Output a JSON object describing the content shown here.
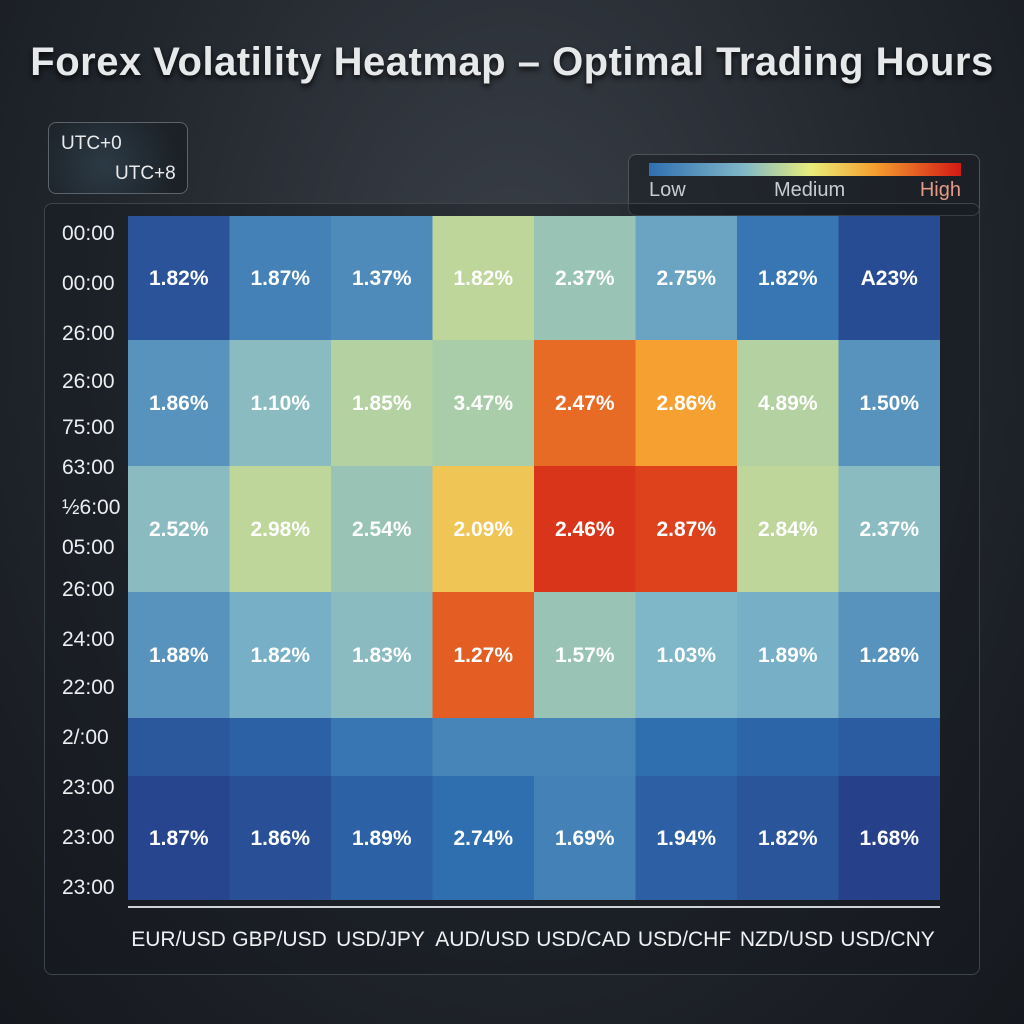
{
  "title": "Forex Volatility Heatmap – Optimal Trading Hours",
  "timezones": [
    "UTC+0",
    "UTC+8"
  ],
  "legend": {
    "low": "Low",
    "medium": "Medium",
    "high": "High"
  },
  "chart_data": {
    "type": "heatmap",
    "title": "Forex Volatility Heatmap – Optimal Trading Hours",
    "x_categories": [
      "EUR/USD",
      "GBP/USD",
      "USD/JPY",
      "AUD/USD",
      "USD/CAD",
      "USD/CHF",
      "NZD/USD",
      "USD/CNY"
    ],
    "y_tick_labels": [
      "00:00",
      "00:00",
      "26:00",
      "26:00",
      "75:00",
      "63:00",
      "½6:00",
      "05:00",
      "26:00",
      "24:00",
      "22:00",
      "2/:00",
      "23:00",
      "23:00",
      "23:00"
    ],
    "rows": [
      {
        "cells": [
          {
            "label": "1.82%",
            "level": 0.08
          },
          {
            "label": "1.87%",
            "level": 0.25
          },
          {
            "label": "1.37%",
            "level": 0.28
          },
          {
            "label": "1.82%",
            "level": 0.52
          },
          {
            "label": "2.37%",
            "level": 0.45
          },
          {
            "label": "2.75%",
            "level": 0.35
          },
          {
            "label": "1.82%",
            "level": 0.22
          },
          {
            "label": "A23%",
            "level": 0.05
          }
        ]
      },
      {
        "cells": [
          {
            "label": "1.86%",
            "level": 0.3
          },
          {
            "label": "1.10%",
            "level": 0.42
          },
          {
            "label": "1.85%",
            "level": 0.5
          },
          {
            "label": "3.47%",
            "level": 0.48
          },
          {
            "label": "2.47%",
            "level": 0.88
          },
          {
            "label": "2.86%",
            "level": 0.8
          },
          {
            "label": "4.89%",
            "level": 0.5
          },
          {
            "label": "1.50%",
            "level": 0.3
          }
        ]
      },
      {
        "cells": [
          {
            "label": "2.52%",
            "level": 0.42
          },
          {
            "label": "2.98%",
            "level": 0.52
          },
          {
            "label": "2.54%",
            "level": 0.45
          },
          {
            "label": "2.09%",
            "level": 0.7
          },
          {
            "label": "2.46%",
            "level": 0.96
          },
          {
            "label": "2.87%",
            "level": 0.94
          },
          {
            "label": "2.84%",
            "level": 0.52
          },
          {
            "label": "2.37%",
            "level": 0.42
          }
        ]
      },
      {
        "cells": [
          {
            "label": "1.88%",
            "level": 0.3
          },
          {
            "label": "1.82%",
            "level": 0.38
          },
          {
            "label": "1.83%",
            "level": 0.42
          },
          {
            "label": "1.27%",
            "level": 0.9
          },
          {
            "label": "1.57%",
            "level": 0.45
          },
          {
            "label": "1.03%",
            "level": 0.4
          },
          {
            "label": "1.89%",
            "level": 0.38
          },
          {
            "label": "1.28%",
            "level": 0.3
          }
        ]
      },
      {
        "cells": [
          {
            "label": "",
            "level": 0.1
          },
          {
            "label": "",
            "level": 0.14
          },
          {
            "label": "",
            "level": 0.22
          },
          {
            "label": "",
            "level": 0.26
          },
          {
            "label": "",
            "level": 0.26
          },
          {
            "label": "",
            "level": 0.2
          },
          {
            "label": "",
            "level": 0.16
          },
          {
            "label": "",
            "level": 0.12
          }
        ]
      },
      {
        "cells": [
          {
            "label": "1.87%",
            "level": 0.02
          },
          {
            "label": "1.86%",
            "level": 0.07
          },
          {
            "label": "1.89%",
            "level": 0.14
          },
          {
            "label": "2.74%",
            "level": 0.2
          },
          {
            "label": "1.69%",
            "level": 0.25
          },
          {
            "label": "1.94%",
            "level": 0.13
          },
          {
            "label": "1.82%",
            "level": 0.09
          },
          {
            "label": "1.68%",
            "level": 0.0
          }
        ]
      }
    ],
    "color_scale": [
      "#26408a",
      "#2f6fb0",
      "#7fb6c8",
      "#e8ec7a",
      "#f5a030",
      "#d21a14"
    ],
    "grid": false,
    "legend_position": "top-right"
  }
}
